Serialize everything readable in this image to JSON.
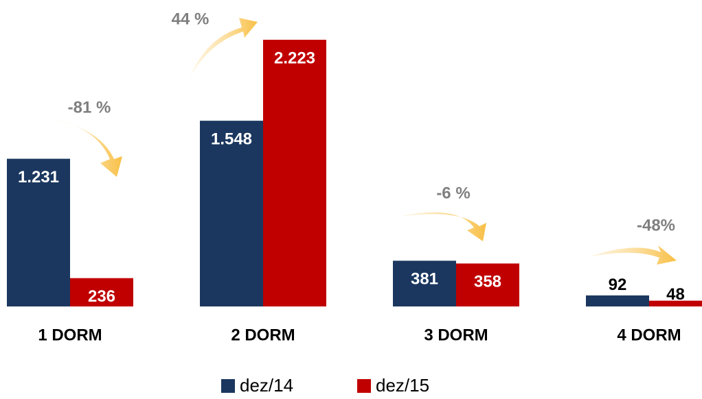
{
  "chart_data": {
    "type": "bar",
    "categories": [
      "1 DORM",
      "2 DORM",
      "3 DORM",
      "4 DORM"
    ],
    "series": [
      {
        "name": "dez/14",
        "color": "#1b375f",
        "values": [
          1231,
          1548,
          381,
          92
        ],
        "value_labels": [
          "1.231",
          "1.548",
          "381",
          "92"
        ]
      },
      {
        "name": "dez/15",
        "color": "#c00000",
        "values": [
          236,
          2223,
          358,
          48
        ],
        "value_labels": [
          "236",
          "2.223",
          "358",
          "48"
        ]
      }
    ],
    "annotations": [
      "-81 %",
      "44 %",
      "-6 %",
      "-48%"
    ]
  }
}
